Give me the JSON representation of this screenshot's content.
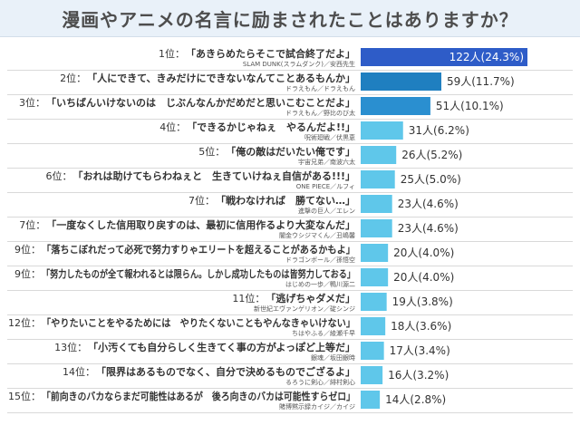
{
  "title": "漫画やアニメの名言に励まされたことはありますか？",
  "colors": {
    "top": "#2e5cc8",
    "second": "#1f7fc0",
    "third": "#2a8fd0",
    "rest": "#5fc7ea",
    "background": "#ffffff",
    "header": "#e9f1f9"
  },
  "chart_data": {
    "type": "bar",
    "orientation": "horizontal",
    "title": "漫画やアニメの名言に励まされたことはありますか？",
    "unit": "人",
    "entries": [
      {
        "rank": "1位：",
        "quote": "「あきらめたらそこで試合終了だよ」",
        "source": "SLAM DUNK(スラムダンク)／安西先生",
        "value": 122,
        "label": "122人(24.3%)"
      },
      {
        "rank": "2位：",
        "quote": "「人にできて、きみだけにできないなんてことあるもんか」",
        "source": "ドラえもん／ドラえもん",
        "value": 59,
        "label": "59人(11.7%)"
      },
      {
        "rank": "3位：",
        "quote": "「いちばんいけないのは　じぶんなんかだめだと思いこむことだよ」",
        "source": "ドラえもん／野比のび太",
        "value": 51,
        "label": "51人(10.1%)"
      },
      {
        "rank": "4位：",
        "quote": "「できるかじゃねぇ　やるんだよ!!」",
        "source": "呪術廻戦／伏黒恵",
        "value": 31,
        "label": "31人(6.2%)"
      },
      {
        "rank": "5位：",
        "quote": "「俺の敵はだいたい俺です」",
        "source": "宇宙兄弟／南波六太",
        "value": 26,
        "label": "26人(5.2%)"
      },
      {
        "rank": "6位：",
        "quote": "「おれは助けてもらわねぇと　生きていけねぇ自信がある!!!」",
        "source": "ONE PIECE／ルフィ",
        "value": 25,
        "label": "25人(5.0%)"
      },
      {
        "rank": "7位：",
        "quote": "「戦わなければ　勝てない…」",
        "source": "進撃の巨人／エレン",
        "value": 23,
        "label": "23人(4.6%)"
      },
      {
        "rank": "7位：",
        "quote": "「一度なくした信用取り戻すのは、最初に信用作るより大変なんだ」",
        "source": "闇金ウシジマくん／丑嶋馨",
        "value": 23,
        "label": "23人(4.6%)"
      },
      {
        "rank": "9位：",
        "quote": "「落ちこぼれだって必死で努力すりゃエリートを超えることがあるかもよ」",
        "source": "ドラゴンボール／孫悟空",
        "value": 20,
        "label": "20人(4.0%)"
      },
      {
        "rank": "9位：",
        "quote": "「努力したものが全て報われるとは限らん。しかし成功したものは皆努力しておる」",
        "source": "はじめの一歩／鴨川源二",
        "value": 20,
        "label": "20人(4.0%)"
      },
      {
        "rank": "11位：",
        "quote": "「逃げちゃダメだ」",
        "source": "新世紀エヴァンゲリオン／碇シンジ",
        "value": 19,
        "label": "19人(3.8%)"
      },
      {
        "rank": "12位：",
        "quote": "「やりたいことをやるためには　やりたくないこともやんなきゃいけない」",
        "source": "ちはやふる／綾瀬千早",
        "value": 18,
        "label": "18人(3.6%)"
      },
      {
        "rank": "13位：",
        "quote": "「小汚くても自分らしく生きてく事の方がよっぽど上等だ」",
        "source": "銀魂／坂田銀時",
        "value": 17,
        "label": "17人(3.4%)"
      },
      {
        "rank": "14位：",
        "quote": "「限界はあるものでなく、自分で決めるものでござるよ」",
        "source": "るろうに剣心／緋村剣心",
        "value": 16,
        "label": "16人(3.2%)"
      },
      {
        "rank": "15位：",
        "quote": "「前向きのバカならまだ可能性はあるが　後ろ向きのバカは可能性すらゼロ」",
        "source": "賭博黙示録カイジ／カイジ",
        "value": 14,
        "label": "14人(2.8%)"
      }
    ]
  }
}
